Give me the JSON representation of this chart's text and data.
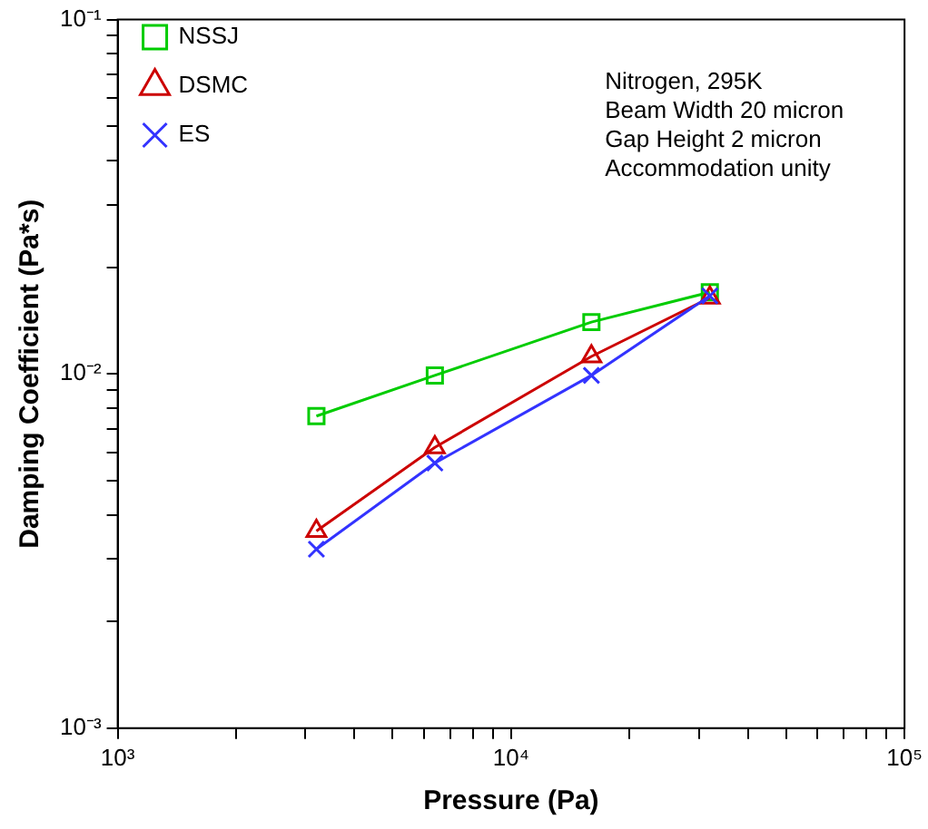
{
  "chart_data": {
    "type": "line",
    "xlabel": "Pressure (Pa)",
    "ylabel": "Damping Coefficient (Pa*s)",
    "log": "xy",
    "grid": false,
    "legend": "top left",
    "xlim": [
      1000,
      100000
    ],
    "ylim": [
      0.001,
      0.1
    ],
    "xticks": [
      {
        "value": 1000,
        "label": "10³"
      },
      {
        "value": 2000,
        "label": null
      },
      {
        "value": 3000,
        "label": null
      },
      {
        "value": 4000,
        "label": null
      },
      {
        "value": 5000,
        "label": null
      },
      {
        "value": 6000,
        "label": null
      },
      {
        "value": 7000,
        "label": null
      },
      {
        "value": 8000,
        "label": null
      },
      {
        "value": 9000,
        "label": null
      },
      {
        "value": 10000,
        "label": "10⁴"
      },
      {
        "value": 20000,
        "label": null
      },
      {
        "value": 30000,
        "label": null
      },
      {
        "value": 40000,
        "label": null
      },
      {
        "value": 50000,
        "label": null
      },
      {
        "value": 60000,
        "label": null
      },
      {
        "value": 70000,
        "label": null
      },
      {
        "value": 80000,
        "label": null
      },
      {
        "value": 90000,
        "label": null
      },
      {
        "value": 100000,
        "label": "10⁵"
      }
    ],
    "yticks": [
      {
        "value": 0.001,
        "label": "10⁻³"
      },
      {
        "value": 0.002,
        "label": null
      },
      {
        "value": 0.003,
        "label": null
      },
      {
        "value": 0.004,
        "label": null
      },
      {
        "value": 0.005,
        "label": null
      },
      {
        "value": 0.006,
        "label": null
      },
      {
        "value": 0.007,
        "label": null
      },
      {
        "value": 0.008,
        "label": null
      },
      {
        "value": 0.009,
        "label": null
      },
      {
        "value": 0.01,
        "label": "10⁻²"
      },
      {
        "value": 0.02,
        "label": null
      },
      {
        "value": 0.03,
        "label": null
      },
      {
        "value": 0.04,
        "label": null
      },
      {
        "value": 0.05,
        "label": null
      },
      {
        "value": 0.06,
        "label": null
      },
      {
        "value": 0.07,
        "label": null
      },
      {
        "value": 0.08,
        "label": null
      },
      {
        "value": 0.09,
        "label": null
      },
      {
        "value": 0.1,
        "label": "10⁻¹"
      }
    ],
    "x": [
      3200,
      6400,
      16000,
      32000
    ],
    "series": [
      {
        "name": "NSSJ",
        "color": "#00cc00",
        "marker": "square",
        "values": [
          0.0076,
          0.0099,
          0.014,
          0.017
        ]
      },
      {
        "name": "DSMC",
        "color": "#cc0000",
        "marker": "triangle",
        "values": [
          0.0036,
          0.0062,
          0.0112,
          0.0164
        ]
      },
      {
        "name": "ES",
        "color": "#3333ff",
        "marker": "cross",
        "values": [
          0.0032,
          0.0056,
          0.0099,
          0.0166
        ]
      }
    ],
    "annotations": [
      "Nitrogen, 295K",
      "Beam Width 20 micron",
      "Gap Height 2 micron",
      "Accommodation unity"
    ]
  }
}
